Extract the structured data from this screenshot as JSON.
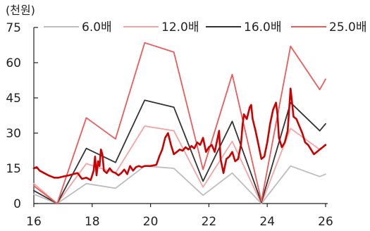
{
  "chart_data": {
    "type": "line",
    "unit_label": "(천원)",
    "x_ticks": [
      "16",
      "18",
      "20",
      "22",
      "24",
      "26"
    ],
    "y_ticks": [
      "0",
      "15",
      "30",
      "45",
      "60",
      "75"
    ],
    "xlim": [
      16,
      26
    ],
    "ylim": [
      0,
      75
    ],
    "grid": false,
    "legend_position": "top",
    "series": [
      {
        "name": "6.0배",
        "color": "#bdbdbd",
        "width": 1.8,
        "points": [
          [
            16,
            4
          ],
          [
            16.8,
            0
          ],
          [
            17.8,
            8.5
          ],
          [
            18.8,
            6.5
          ],
          [
            19.8,
            16
          ],
          [
            20.8,
            15
          ],
          [
            21.8,
            3.5
          ],
          [
            22.8,
            13
          ],
          [
            23.8,
            0
          ],
          [
            24.8,
            16
          ],
          [
            25.8,
            11.5
          ],
          [
            26,
            12.5
          ]
        ]
      },
      {
        "name": "12.0배",
        "color": "#f4a3a3",
        "width": 1.8,
        "points": [
          [
            16,
            8.5
          ],
          [
            16.8,
            0
          ],
          [
            17.8,
            17
          ],
          [
            18.8,
            13
          ],
          [
            19.8,
            33
          ],
          [
            20.8,
            31
          ],
          [
            21.8,
            7
          ],
          [
            22.8,
            26.5
          ],
          [
            23.8,
            0
          ],
          [
            24.8,
            32
          ],
          [
            25.8,
            23
          ],
          [
            26,
            25
          ]
        ]
      },
      {
        "name": "16.0배",
        "color": "#333333",
        "width": 1.8,
        "points": [
          [
            16,
            5.5
          ],
          [
            16.8,
            0
          ],
          [
            17.8,
            23.5
          ],
          [
            18.8,
            17.5
          ],
          [
            19.8,
            44
          ],
          [
            20.8,
            41
          ],
          [
            21.8,
            9.5
          ],
          [
            22.8,
            35
          ],
          [
            23.8,
            0.5
          ],
          [
            24.8,
            43
          ],
          [
            25.8,
            31
          ],
          [
            26,
            34
          ]
        ]
      },
      {
        "name": "25.0배",
        "color": "#ee5a5a",
        "width": 1.8,
        "points": [
          [
            16,
            7.5
          ],
          [
            16.8,
            0
          ],
          [
            17.8,
            36.5
          ],
          [
            18.8,
            27.5
          ],
          [
            19.8,
            68.5
          ],
          [
            20.8,
            64.5
          ],
          [
            21.8,
            14.5
          ],
          [
            22.8,
            55
          ],
          [
            23.8,
            1
          ],
          [
            24.8,
            67
          ],
          [
            25.8,
            48.5
          ],
          [
            26,
            53
          ]
        ]
      },
      {
        "name": "",
        "color": "#cc0000",
        "width": 2.6,
        "points": [
          [
            16,
            15
          ],
          [
            16.1,
            15.5
          ],
          [
            16.2,
            14
          ],
          [
            16.35,
            13
          ],
          [
            16.5,
            12
          ],
          [
            16.7,
            11
          ],
          [
            16.85,
            11
          ],
          [
            17,
            11.5
          ],
          [
            17.2,
            12
          ],
          [
            17.35,
            12.5
          ],
          [
            17.5,
            13
          ],
          [
            17.65,
            10.5
          ],
          [
            17.8,
            11
          ],
          [
            17.95,
            10
          ],
          [
            18.05,
            14
          ],
          [
            18.1,
            20
          ],
          [
            18.15,
            12
          ],
          [
            18.2,
            18
          ],
          [
            18.25,
            16
          ],
          [
            18.3,
            23
          ],
          [
            18.35,
            21
          ],
          [
            18.4,
            14
          ],
          [
            18.5,
            13
          ],
          [
            18.6,
            15
          ],
          [
            18.7,
            13.5
          ],
          [
            18.8,
            13
          ],
          [
            18.9,
            12
          ],
          [
            19.0,
            13
          ],
          [
            19.1,
            14.5
          ],
          [
            19.2,
            12.5
          ],
          [
            19.3,
            16
          ],
          [
            19.4,
            14
          ],
          [
            19.5,
            15.5
          ],
          [
            19.6,
            16
          ],
          [
            19.7,
            15.5
          ],
          [
            19.8,
            16
          ],
          [
            20.0,
            16
          ],
          [
            20.2,
            16.5
          ],
          [
            20.3,
            20
          ],
          [
            20.4,
            23
          ],
          [
            20.5,
            28
          ],
          [
            20.6,
            30
          ],
          [
            20.7,
            25
          ],
          [
            20.8,
            21
          ],
          [
            20.9,
            22
          ],
          [
            21.0,
            23
          ],
          [
            21.1,
            22.5
          ],
          [
            21.2,
            24
          ],
          [
            21.3,
            23
          ],
          [
            21.4,
            24.5
          ],
          [
            21.5,
            23.5
          ],
          [
            21.6,
            26
          ],
          [
            21.7,
            25
          ],
          [
            21.8,
            28
          ],
          [
            21.9,
            22
          ],
          [
            22.0,
            24
          ],
          [
            22.1,
            25
          ],
          [
            22.2,
            22
          ],
          [
            22.3,
            28
          ],
          [
            22.35,
            31
          ],
          [
            22.4,
            19
          ],
          [
            22.5,
            13
          ],
          [
            22.6,
            19
          ],
          [
            22.7,
            20
          ],
          [
            22.8,
            22
          ],
          [
            22.9,
            18
          ],
          [
            23.0,
            19
          ],
          [
            23.1,
            25
          ],
          [
            23.15,
            33
          ],
          [
            23.2,
            38
          ],
          [
            23.3,
            36
          ],
          [
            23.4,
            41
          ],
          [
            23.45,
            42
          ],
          [
            23.5,
            36
          ],
          [
            23.6,
            31
          ],
          [
            23.7,
            25
          ],
          [
            23.8,
            19
          ],
          [
            23.9,
            20
          ],
          [
            24.0,
            26
          ],
          [
            24.1,
            34
          ],
          [
            24.2,
            40
          ],
          [
            24.3,
            43
          ],
          [
            24.35,
            38
          ],
          [
            24.4,
            28
          ],
          [
            24.5,
            24
          ],
          [
            24.6,
            26
          ],
          [
            24.7,
            31
          ],
          [
            24.8,
            49
          ],
          [
            24.9,
            37
          ],
          [
            25.0,
            36
          ],
          [
            25.1,
            33
          ],
          [
            25.2,
            30
          ],
          [
            25.3,
            26
          ],
          [
            25.4,
            25
          ],
          [
            25.5,
            23
          ],
          [
            25.6,
            21
          ],
          [
            25.7,
            22
          ],
          [
            25.8,
            23
          ],
          [
            25.9,
            24
          ],
          [
            26.0,
            25
          ]
        ]
      }
    ]
  }
}
